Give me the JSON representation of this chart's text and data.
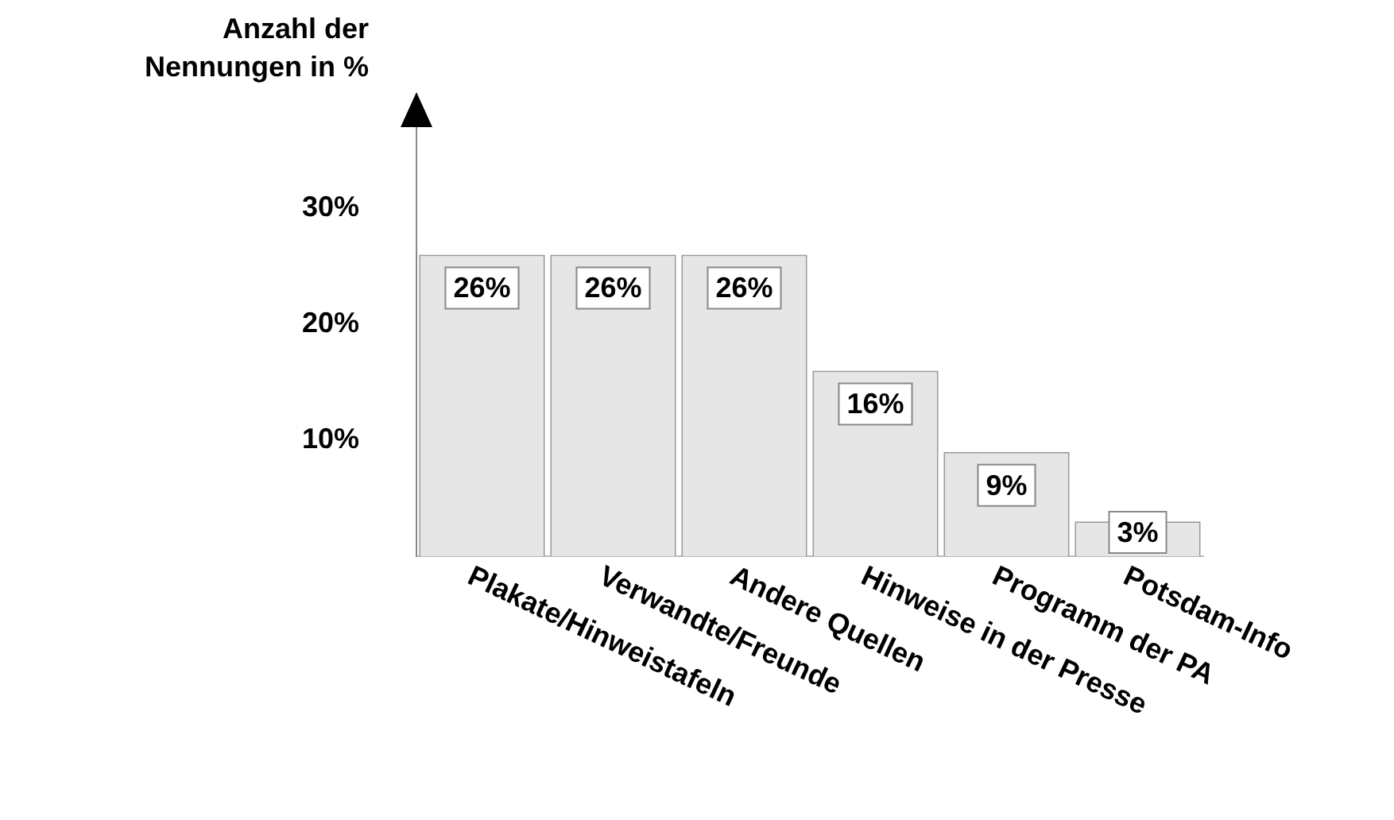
{
  "chart_data": {
    "type": "bar",
    "ylabel": "Anzahl der\nNennungen in %",
    "categories": [
      "Plakate/Hinweistafeln",
      "Verwandte/Freunde",
      "Andere Quellen",
      "Hinweise in der Presse",
      "Programm der PA",
      "Potsdam-Info"
    ],
    "values": [
      26,
      26,
      26,
      16,
      9,
      3
    ],
    "value_labels": [
      "26%",
      "26%",
      "26%",
      "16%",
      "9%",
      "3%"
    ],
    "color": "#e6e6e6",
    "ylim": [
      0,
      37
    ],
    "yticks": [
      {
        "value": 10,
        "label": "10%"
      },
      {
        "value": 20,
        "label": "20%"
      },
      {
        "value": 30,
        "label": "30%"
      }
    ],
    "grid": false,
    "legend": false
  }
}
